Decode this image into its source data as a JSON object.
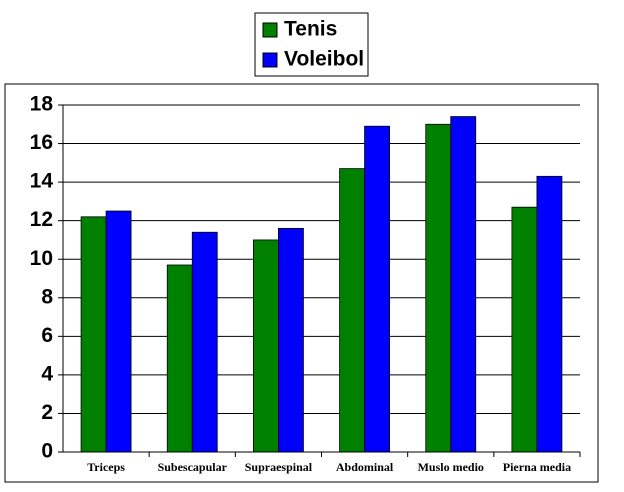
{
  "chart_data": {
    "type": "bar",
    "categories": [
      "Triceps",
      "Subescapular",
      "Supraespinal",
      "Abdominal",
      "Muslo medio",
      "Pierna media"
    ],
    "series": [
      {
        "name": "Tenis",
        "color": "#008000",
        "values": [
          12.2,
          9.7,
          11.0,
          14.7,
          17.0,
          12.7
        ]
      },
      {
        "name": "Voleibol",
        "color": "#0000ff",
        "values": [
          12.5,
          11.4,
          11.6,
          16.9,
          17.4,
          14.3
        ]
      }
    ],
    "ylim": [
      0,
      18
    ],
    "yticks": [
      0,
      2,
      4,
      6,
      8,
      10,
      12,
      14,
      16,
      18
    ],
    "grid": true,
    "legend": "top"
  }
}
